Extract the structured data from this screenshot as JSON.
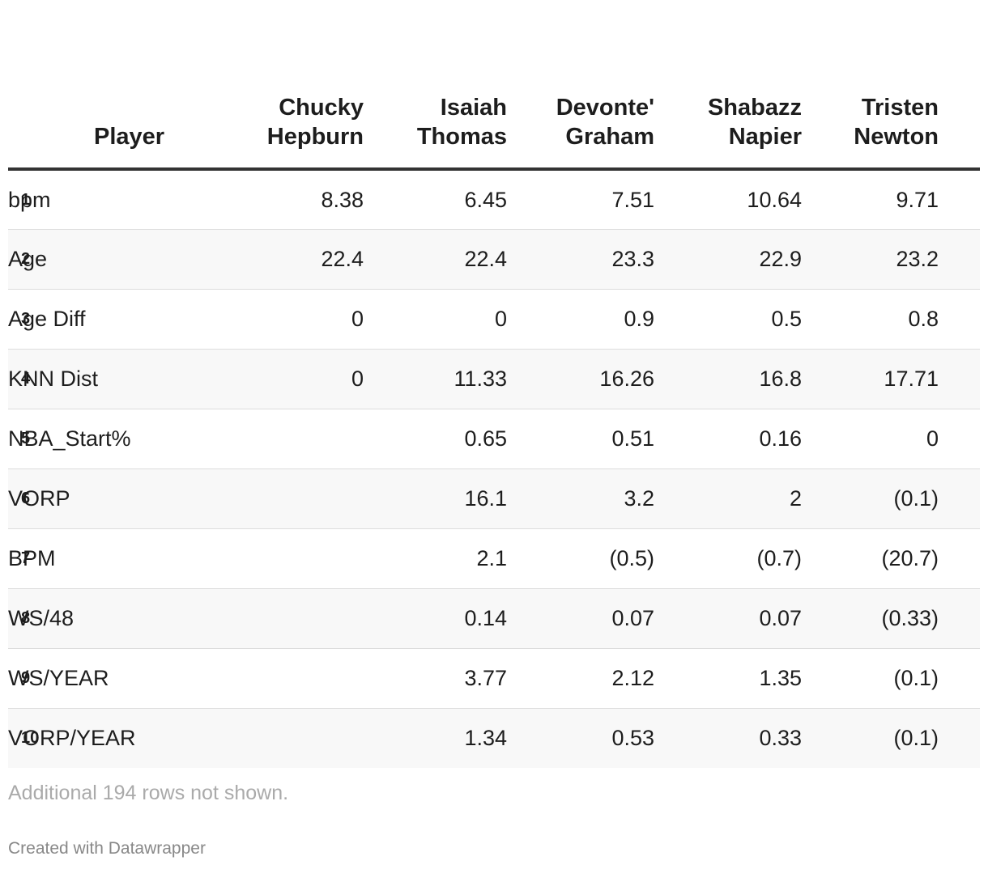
{
  "table": {
    "columns": [
      "Player",
      "Chucky Hepburn",
      "Isaiah Thomas",
      "Devonte' Graham",
      "Shabazz Napier",
      "Tristen Newton"
    ],
    "columns_display": [
      [
        "Player"
      ],
      [
        "Chucky",
        "Hepburn"
      ],
      [
        "Isaiah",
        "Thomas"
      ],
      [
        "Devonte'",
        "Graham"
      ],
      [
        "Shabazz",
        "Napier"
      ],
      [
        "Tristen",
        "Newton"
      ]
    ],
    "rows": [
      {
        "index": "1",
        "label": "bpm",
        "values": [
          "8.38",
          "6.45",
          "7.51",
          "10.64",
          "9.71"
        ]
      },
      {
        "index": "2",
        "label": "Age",
        "values": [
          "22.4",
          "22.4",
          "23.3",
          "22.9",
          "23.2"
        ]
      },
      {
        "index": "3",
        "label": "Age Diff",
        "values": [
          "0",
          "0",
          "0.9",
          "0.5",
          "0.8"
        ]
      },
      {
        "index": "4",
        "label": "KNN Dist",
        "values": [
          "0",
          "11.33",
          "16.26",
          "16.8",
          "17.71"
        ]
      },
      {
        "index": "5",
        "label": "NBA_Start%",
        "values": [
          "",
          "0.65",
          "0.51",
          "0.16",
          "0"
        ]
      },
      {
        "index": "6",
        "label": "VORP",
        "values": [
          "",
          "16.1",
          "3.2",
          "2",
          "(0.1)"
        ]
      },
      {
        "index": "7",
        "label": "BPM",
        "values": [
          "",
          "2.1",
          "(0.5)",
          "(0.7)",
          "(20.7)"
        ]
      },
      {
        "index": "8",
        "label": "WS/48",
        "values": [
          "",
          "0.14",
          "0.07",
          "0.07",
          "(0.33)"
        ]
      },
      {
        "index": "9",
        "label": "WS/YEAR",
        "values": [
          "",
          "3.77",
          "2.12",
          "1.35",
          "(0.1)"
        ]
      },
      {
        "index": "10",
        "label": "VORP/YEAR",
        "values": [
          "",
          "1.34",
          "0.53",
          "0.33",
          "(0.1)"
        ]
      }
    ]
  },
  "notes": "Additional 194 rows not shown.",
  "credit": "Created with Datawrapper",
  "colors": {
    "text": "#1d1d1d",
    "header_rule": "#333333",
    "row_alt": "#f8f8f8",
    "row_divider": "#dddddd",
    "notes": "#aaaaaa",
    "credit": "#888888"
  }
}
